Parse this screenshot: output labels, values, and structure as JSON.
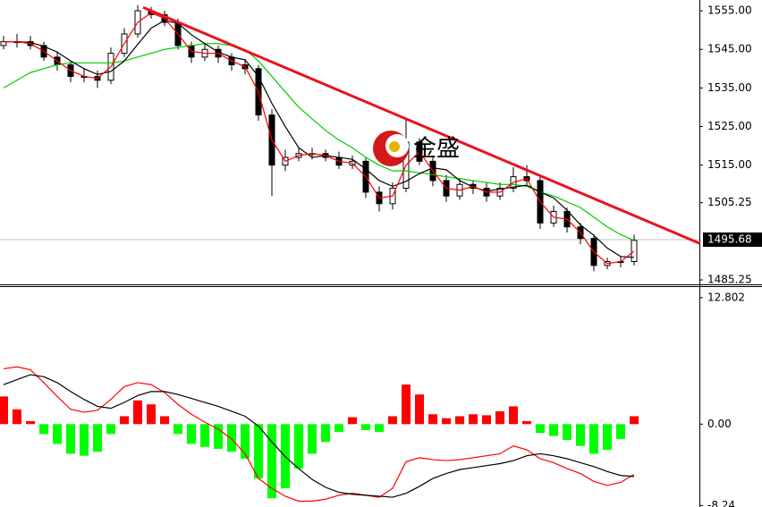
{
  "chart_data": [
    {
      "type": "candlestick",
      "open": [
        1546,
        1547,
        1547,
        1546,
        1543,
        1541,
        1538,
        1538,
        1537,
        1544,
        1549,
        1555,
        1554,
        1552,
        1546,
        1543,
        1545,
        1543,
        1541,
        1540,
        1528,
        1515,
        1517,
        1518,
        1518,
        1517,
        1515,
        1516,
        1508,
        1505,
        1509,
        1521,
        1516,
        1511,
        1507,
        1510,
        1509,
        1507,
        1509,
        1512,
        1511,
        1500,
        1503,
        1499,
        1496,
        1489,
        1490,
        1490
      ],
      "high": [
        1548.5,
        1549,
        1548.5,
        1547,
        1544.5,
        1542,
        1540,
        1539.5,
        1545.5,
        1550.5,
        1556.5,
        1556,
        1555,
        1553,
        1547,
        1546.5,
        1546,
        1544,
        1542.5,
        1541,
        1529.5,
        1519,
        1519.5,
        1519.5,
        1519,
        1518.5,
        1517.5,
        1517,
        1509.5,
        1510.5,
        1527,
        1522,
        1517.5,
        1512.5,
        1511.5,
        1511,
        1510.5,
        1510.5,
        1514.5,
        1515,
        1512,
        1504.5,
        1504,
        1500,
        1497,
        1491,
        1491.5,
        1497
      ],
      "low": [
        1545,
        1545.5,
        1545,
        1542,
        1539.5,
        1536.5,
        1536.5,
        1535,
        1536,
        1543,
        1548,
        1553,
        1551,
        1545,
        1541.5,
        1542,
        1541.5,
        1539.5,
        1538.5,
        1526.5,
        1507,
        1513.5,
        1516,
        1516.5,
        1516,
        1514,
        1514,
        1506.5,
        1503,
        1503.5,
        1508,
        1515,
        1509.5,
        1505.5,
        1506,
        1507.5,
        1505.5,
        1506,
        1508,
        1510,
        1498.5,
        1499,
        1497.5,
        1494.5,
        1487.5,
        1488,
        1488.5,
        1489
      ],
      "close": [
        1547,
        1547,
        1546,
        1543,
        1541,
        1538,
        1538,
        1537,
        1544,
        1549,
        1555,
        1554,
        1552,
        1546,
        1543,
        1545,
        1543,
        1541,
        1540,
        1528,
        1515,
        1517,
        1518,
        1518,
        1517,
        1515,
        1516,
        1508,
        1505,
        1509,
        1521,
        1516,
        1511,
        1507,
        1510,
        1509,
        1507,
        1509,
        1512,
        1511,
        1500,
        1503,
        1499,
        1496,
        1489,
        1490,
        1490,
        1495.5
      ],
      "up_color": "#ffffff",
      "down_color": "#000000",
      "series": [
        {
          "color": "#00cc00",
          "values": [
            1535,
            1537,
            1539,
            1540,
            1541,
            1541.5,
            1541.5,
            1541.5,
            1541.5,
            1542,
            1543,
            1544,
            1545,
            1545.5,
            1546,
            1546.5,
            1546.5,
            1546,
            1545,
            1542,
            1538,
            1534,
            1530,
            1527,
            1524,
            1521.5,
            1519.5,
            1517,
            1515,
            1513.5,
            1513.5,
            1513,
            1512.5,
            1512,
            1511.5,
            1511,
            1510.5,
            1510,
            1510,
            1509.5,
            1508,
            1507,
            1505.5,
            1504,
            1501.5,
            1499,
            1497,
            1495.5
          ]
        },
        {
          "color": "#000000",
          "values": [
            1547,
            1547,
            1546.8,
            1545.8,
            1544.3,
            1542,
            1540,
            1538.5,
            1539.3,
            1542,
            1546.3,
            1550.5,
            1552.5,
            1551.8,
            1548.8,
            1546.5,
            1544.3,
            1543,
            1542.3,
            1538,
            1531,
            1525,
            1519.5,
            1517,
            1517.5,
            1517,
            1516.5,
            1514,
            1511,
            1509.5,
            1510.8,
            1512.8,
            1514.3,
            1513.8,
            1511,
            1509.3,
            1508.3,
            1508.8,
            1509.3,
            1509.8,
            1508,
            1506.5,
            1503.3,
            1499.5,
            1496.8,
            1493.5,
            1491.3,
            1491.1
          ]
        },
        {
          "color": "#ff0000",
          "values": [
            1547,
            1547,
            1546.5,
            1544.5,
            1542,
            1539.5,
            1538,
            1537.5,
            1540.5,
            1546.5,
            1552,
            1554.5,
            1553,
            1549,
            1544.5,
            1544,
            1544,
            1542,
            1540.5,
            1534,
            1521.5,
            1516,
            1517.5,
            1518,
            1517.5,
            1516,
            1515.5,
            1512,
            1506.5,
            1507,
            1515,
            1518.5,
            1513.5,
            1509,
            1508.5,
            1509.5,
            1508,
            1508,
            1510.5,
            1511.5,
            1505.5,
            1501.5,
            1501,
            1497.5,
            1492.5,
            1489.5,
            1490,
            1492.7
          ]
        }
      ],
      "trend_line": {
        "color": "#e8141e",
        "x": [
          10.4,
          51.9
        ],
        "y": [
          1555.9,
          1494.7
        ]
      },
      "last_price": {
        "value": 1495.68,
        "label": "1495.68"
      },
      "watermark": "金盛",
      "ylim": [
        1484.1,
        1557.8
      ],
      "yticks": [
        {
          "value": 1555,
          "label": "1555.00"
        },
        {
          "value": 1545,
          "label": "1545.00"
        },
        {
          "value": 1535,
          "label": "1535.00"
        },
        {
          "value": 1525,
          "label": "1525.00"
        },
        {
          "value": 1515,
          "label": "1515.00"
        },
        1505.25,
        1485.25
      ]
    },
    {
      "type": "macd",
      "histogram": {
        "up_color": "#ff0000",
        "down_color": "#00ff00",
        "values": [
          2.8,
          1.5,
          0.3,
          -1.0,
          -2.0,
          -3.0,
          -3.2,
          -2.8,
          -1.0,
          0.8,
          2.4,
          2.0,
          0.8,
          -1.0,
          -2.0,
          -2.3,
          -2.5,
          -2.8,
          -3.5,
          -5.5,
          -7.5,
          -6.5,
          -4.5,
          -3.0,
          -1.8,
          -0.8,
          0.7,
          -0.6,
          -0.8,
          0.8,
          4.0,
          3.0,
          1.0,
          0.6,
          0.8,
          1.0,
          0.9,
          1.3,
          1.8,
          0.3,
          -0.9,
          -1.2,
          -1.6,
          -2.2,
          -3.0,
          -2.6,
          -1.5,
          0.8
        ]
      },
      "series": [
        {
          "color": "#ff0000",
          "values": [
            5.6,
            5.8,
            5.5,
            4.2,
            2.8,
            1.5,
            1.2,
            1.4,
            2.5,
            3.8,
            4.2,
            4,
            3.2,
            2,
            1,
            0.2,
            -0.5,
            -1.5,
            -3,
            -5.5,
            -6.5,
            -7.3,
            -7.8,
            -7.8,
            -7.6,
            -7.2,
            -7,
            -7.2,
            -7.4,
            -6.5,
            -3.8,
            -3.4,
            -3.6,
            -3.7,
            -3.6,
            -3.4,
            -3.2,
            -3,
            -2.2,
            -2.6,
            -3.5,
            -3.9,
            -4.5,
            -5,
            -5.8,
            -6.2,
            -5.9,
            -5.1
          ]
        },
        {
          "color": "#000000",
          "values": [
            4,
            4.5,
            5,
            4.8,
            4.2,
            3.3,
            2.5,
            1.8,
            1.6,
            2.2,
            2.9,
            3.3,
            3.3,
            3,
            2.6,
            2.2,
            1.8,
            1.3,
            0.8,
            -0.2,
            -1.8,
            -3.3,
            -4.5,
            -5.6,
            -6.4,
            -6.9,
            -7.1,
            -7.2,
            -7.3,
            -7.4,
            -7,
            -6.3,
            -5.5,
            -5,
            -4.6,
            -4.4,
            -4.2,
            -4,
            -3.7,
            -3.2,
            -3,
            -3.2,
            -3.5,
            -3.9,
            -4.3,
            -4.8,
            -5.2,
            -5.3
          ]
        }
      ],
      "ylim": [
        -8.39,
        13.88
      ],
      "yticks": [
        12.802,
        {
          "value": 0,
          "label": "0.00"
        },
        {
          "value": -8.24,
          "label": "-8.24"
        }
      ]
    }
  ]
}
